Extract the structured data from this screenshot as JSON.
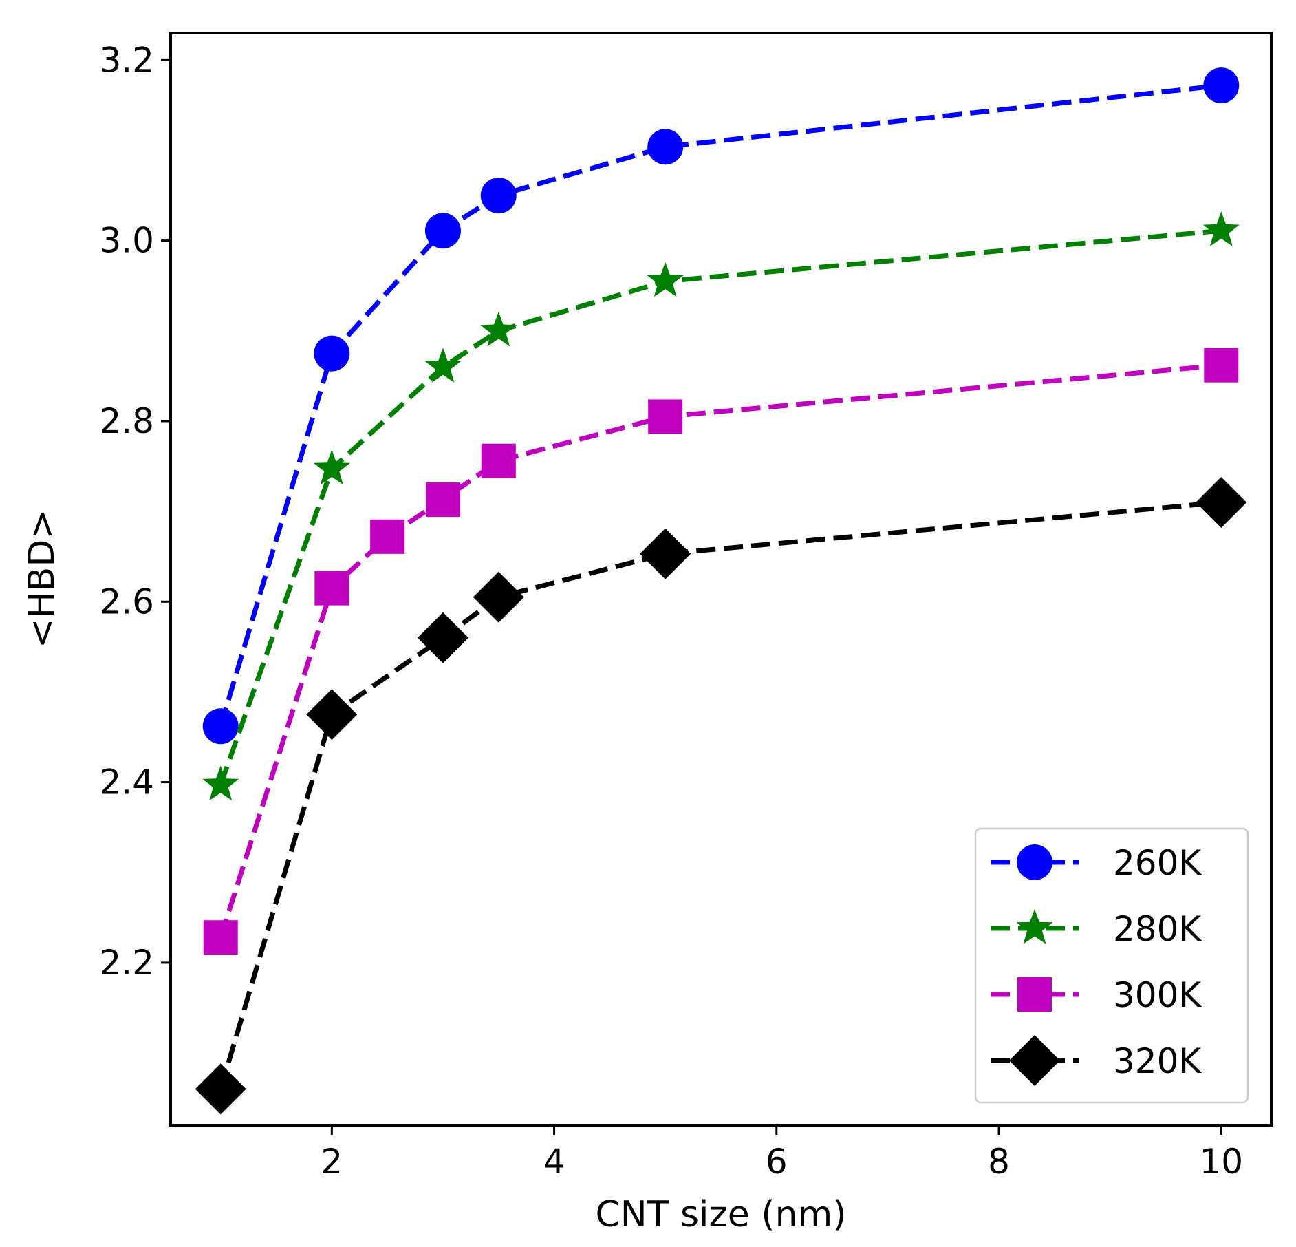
{
  "chart_data": {
    "type": "line",
    "title": "",
    "xlabel": "CNT size (nm)",
    "ylabel": "<HBD>",
    "xlim": [
      0.55,
      10.45
    ],
    "ylim": [
      2.02,
      3.23
    ],
    "xticks": [
      2,
      4,
      6,
      8,
      10
    ],
    "yticks": [
      2.2,
      2.4,
      2.6,
      2.8,
      3.0,
      3.2
    ],
    "xtick_labels": [
      "2",
      "4",
      "6",
      "8",
      "10"
    ],
    "ytick_labels": [
      "2.2",
      "2.4",
      "2.6",
      "2.8",
      "3.0",
      "3.2"
    ],
    "grid": false,
    "legend_position": "bottom-right",
    "line_style": "dashed",
    "series": [
      {
        "name": "260K",
        "color": "#0000ff",
        "marker": "circle",
        "x": [
          1,
          2,
          3,
          3.5,
          5,
          10
        ],
        "y": [
          2.462,
          2.875,
          3.011,
          3.05,
          3.104,
          3.172
        ]
      },
      {
        "name": "280K",
        "color": "#008000",
        "marker": "star",
        "x": [
          1,
          2,
          3,
          3.5,
          5,
          10
        ],
        "y": [
          2.397,
          2.747,
          2.86,
          2.9,
          2.955,
          3.011
        ]
      },
      {
        "name": "300K",
        "color": "#bf00bf",
        "marker": "square",
        "x": [
          1,
          2,
          2.5,
          3,
          3.5,
          5,
          10
        ],
        "y": [
          2.228,
          2.615,
          2.672,
          2.713,
          2.756,
          2.805,
          2.862
        ]
      },
      {
        "name": "320K",
        "color": "#000000",
        "marker": "diamond",
        "x": [
          1,
          2,
          3,
          3.5,
          5,
          10
        ],
        "y": [
          2.06,
          2.475,
          2.56,
          2.605,
          2.653,
          2.71
        ]
      }
    ]
  }
}
